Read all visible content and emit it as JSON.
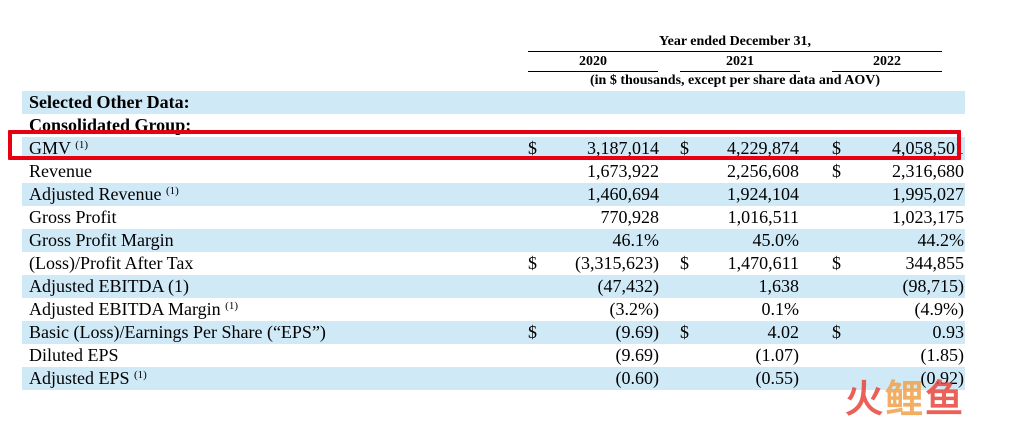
{
  "header": {
    "period_title": "Year ended December 31,",
    "years": [
      "2020",
      "2021",
      "2022"
    ],
    "units_note": "(in $ thousands, except per share data and AOV)"
  },
  "section_titles": [
    "Selected Other Data:",
    "Consolidated Group:"
  ],
  "rows": [
    {
      "label": "GMV",
      "footnote": "(1)",
      "cells": [
        {
          "dollar": "$",
          "value": "3,187,014"
        },
        {
          "dollar": "$",
          "value": "4,229,874"
        },
        {
          "dollar": "$",
          "value": "4,058,501"
        }
      ]
    },
    {
      "label": "Revenue",
      "footnote": "",
      "cells": [
        {
          "dollar": "",
          "value": "1,673,922"
        },
        {
          "dollar": "",
          "value": "2,256,608"
        },
        {
          "dollar": "$",
          "value": "2,316,680"
        }
      ]
    },
    {
      "label": "Adjusted Revenue",
      "footnote": "(1)",
      "cells": [
        {
          "dollar": "",
          "value": "1,460,694"
        },
        {
          "dollar": "",
          "value": "1,924,104"
        },
        {
          "dollar": "",
          "value": "1,995,027"
        }
      ]
    },
    {
      "label": "Gross Profit",
      "footnote": "",
      "cells": [
        {
          "dollar": "",
          "value": "770,928"
        },
        {
          "dollar": "",
          "value": "1,016,511"
        },
        {
          "dollar": "",
          "value": "1,023,175"
        }
      ]
    },
    {
      "label": "Gross Profit Margin",
      "footnote": "",
      "cells": [
        {
          "dollar": "",
          "value": "46.1%"
        },
        {
          "dollar": "",
          "value": "45.0%"
        },
        {
          "dollar": "",
          "value": "44.2%"
        }
      ]
    },
    {
      "label": "(Loss)/Profit After Tax",
      "footnote": "",
      "cells": [
        {
          "dollar": "$",
          "value": "(3,315,623)"
        },
        {
          "dollar": "$",
          "value": "1,470,611"
        },
        {
          "dollar": "$",
          "value": "344,855"
        }
      ]
    },
    {
      "label": "Adjusted EBITDA (1)",
      "footnote": "",
      "cells": [
        {
          "dollar": "",
          "value": "(47,432)"
        },
        {
          "dollar": "",
          "value": "1,638"
        },
        {
          "dollar": "",
          "value": "(98,715)"
        }
      ]
    },
    {
      "label": "Adjusted EBITDA Margin",
      "footnote": "(1)",
      "cells": [
        {
          "dollar": "",
          "value": "(3.2%)"
        },
        {
          "dollar": "",
          "value": "0.1%"
        },
        {
          "dollar": "",
          "value": "(4.9%)"
        }
      ]
    },
    {
      "label": "Basic (Loss)/Earnings Per Share (“EPS”)",
      "footnote": "",
      "cells": [
        {
          "dollar": "$",
          "value": "(9.69)"
        },
        {
          "dollar": "$",
          "value": "4.02"
        },
        {
          "dollar": "$",
          "value": "0.93"
        }
      ]
    },
    {
      "label": "Diluted EPS",
      "footnote": "",
      "cells": [
        {
          "dollar": "",
          "value": "(9.69)"
        },
        {
          "dollar": "",
          "value": "(1.07)"
        },
        {
          "dollar": "",
          "value": "(1.85)"
        }
      ]
    },
    {
      "label": "Adjusted EPS",
      "footnote": "(1)",
      "cells": [
        {
          "dollar": "",
          "value": "(0.60)"
        },
        {
          "dollar": "",
          "value": "(0.55)"
        },
        {
          "dollar": "",
          "value": "(0.92)"
        }
      ]
    }
  ],
  "highlight": {
    "row_label": "GMV",
    "color": "#e60012"
  },
  "colors": {
    "row_shade": "#cfe9f7",
    "highlight_border": "#e60012"
  },
  "watermark": {
    "text_parts": [
      "火",
      "鲤",
      "鱼"
    ]
  }
}
